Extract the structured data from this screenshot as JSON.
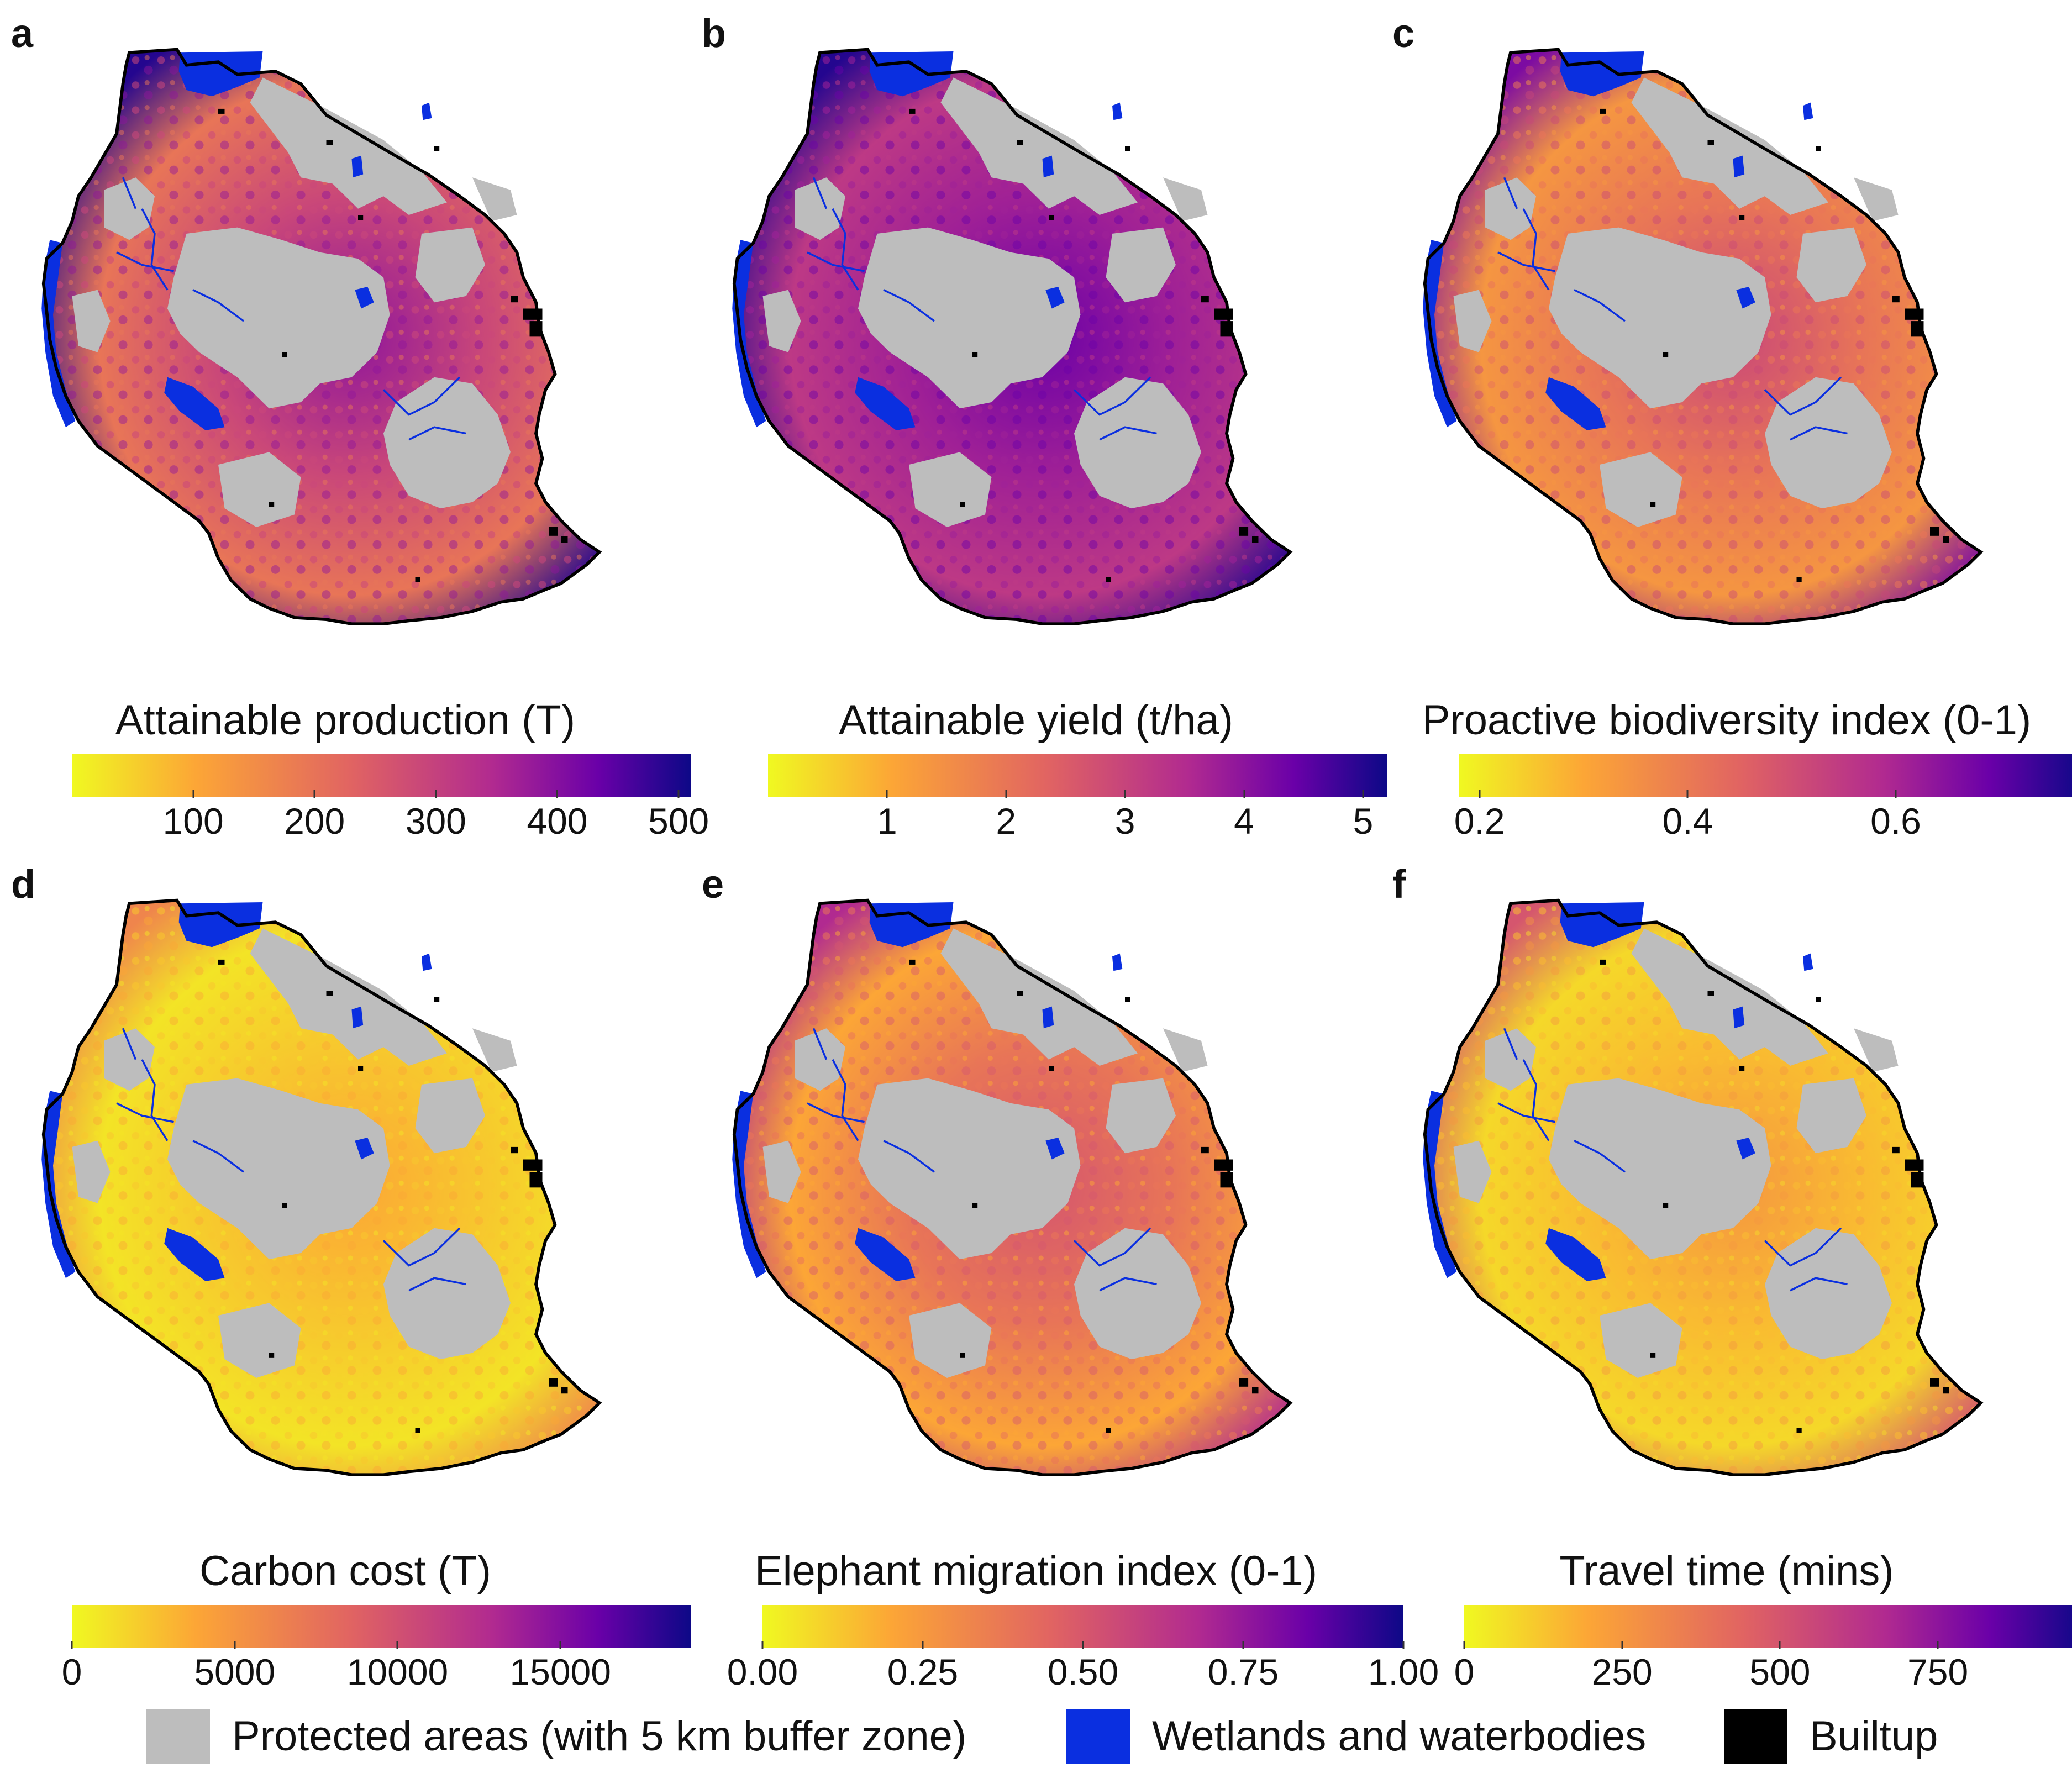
{
  "colors": {
    "protected": "#bdbdbd",
    "water": "#0a2fe0",
    "builtup": "#000000",
    "border": "#000000",
    "plasma": [
      "#f0f921",
      "#fca636",
      "#e16462",
      "#b12a90",
      "#6a00a8",
      "#0d0887"
    ]
  },
  "panels": [
    {
      "letter": "a",
      "title": "Attainable production (T)",
      "ticks": [
        "100",
        "200",
        "300",
        "400",
        "500"
      ],
      "tick_values": [
        100,
        200,
        300,
        400,
        500
      ],
      "range": [
        0,
        510
      ],
      "fill_stops": [
        0.35,
        0.5,
        0.7,
        0.95
      ]
    },
    {
      "letter": "b",
      "title": "Attainable yield (t/ha)",
      "ticks": [
        "1",
        "2",
        "3",
        "4",
        "5"
      ],
      "tick_values": [
        1,
        2,
        3,
        4,
        5
      ],
      "range": [
        0,
        5.2
      ],
      "fill_stops": [
        0.55,
        0.65,
        0.8,
        0.95
      ]
    },
    {
      "letter": "c",
      "title": "Proactive biodiversity index (0-1)",
      "ticks": [
        "0.2",
        "0.4",
        "0.6"
      ],
      "tick_values": [
        0.2,
        0.4,
        0.6
      ],
      "range": [
        0.18,
        0.78
      ],
      "fill_stops": [
        0.25,
        0.35,
        0.5,
        0.75
      ]
    },
    {
      "letter": "d",
      "title": "Carbon cost (T)",
      "ticks": [
        "0",
        "5000",
        "10000",
        "15000"
      ],
      "tick_values": [
        0,
        5000,
        10000,
        15000
      ],
      "range": [
        0,
        19000
      ],
      "fill_stops": [
        0.05,
        0.12,
        0.2,
        0.3
      ]
    },
    {
      "letter": "e",
      "title": "Elephant migration index (0-1)",
      "ticks": [
        "0.00",
        "0.25",
        "0.50",
        "0.75",
        "1.00"
      ],
      "tick_values": [
        0,
        0.25,
        0.5,
        0.75,
        1.0
      ],
      "range": [
        0,
        1.0
      ],
      "fill_stops": [
        0.2,
        0.35,
        0.45,
        0.6
      ]
    },
    {
      "letter": "f",
      "title": "Travel time (mins)",
      "ticks": [
        "0",
        "250",
        "500",
        "750"
      ],
      "tick_values": [
        0,
        250,
        500,
        750
      ],
      "range": [
        0,
        980
      ],
      "fill_stops": [
        0.08,
        0.15,
        0.25,
        0.45
      ]
    }
  ],
  "legend": [
    {
      "key": "protected",
      "label": "Protected areas (with 5 km buffer zone)"
    },
    {
      "key": "water",
      "label": "Wetlands and waterbodies"
    },
    {
      "key": "builtup",
      "label": "Builtup"
    }
  ]
}
